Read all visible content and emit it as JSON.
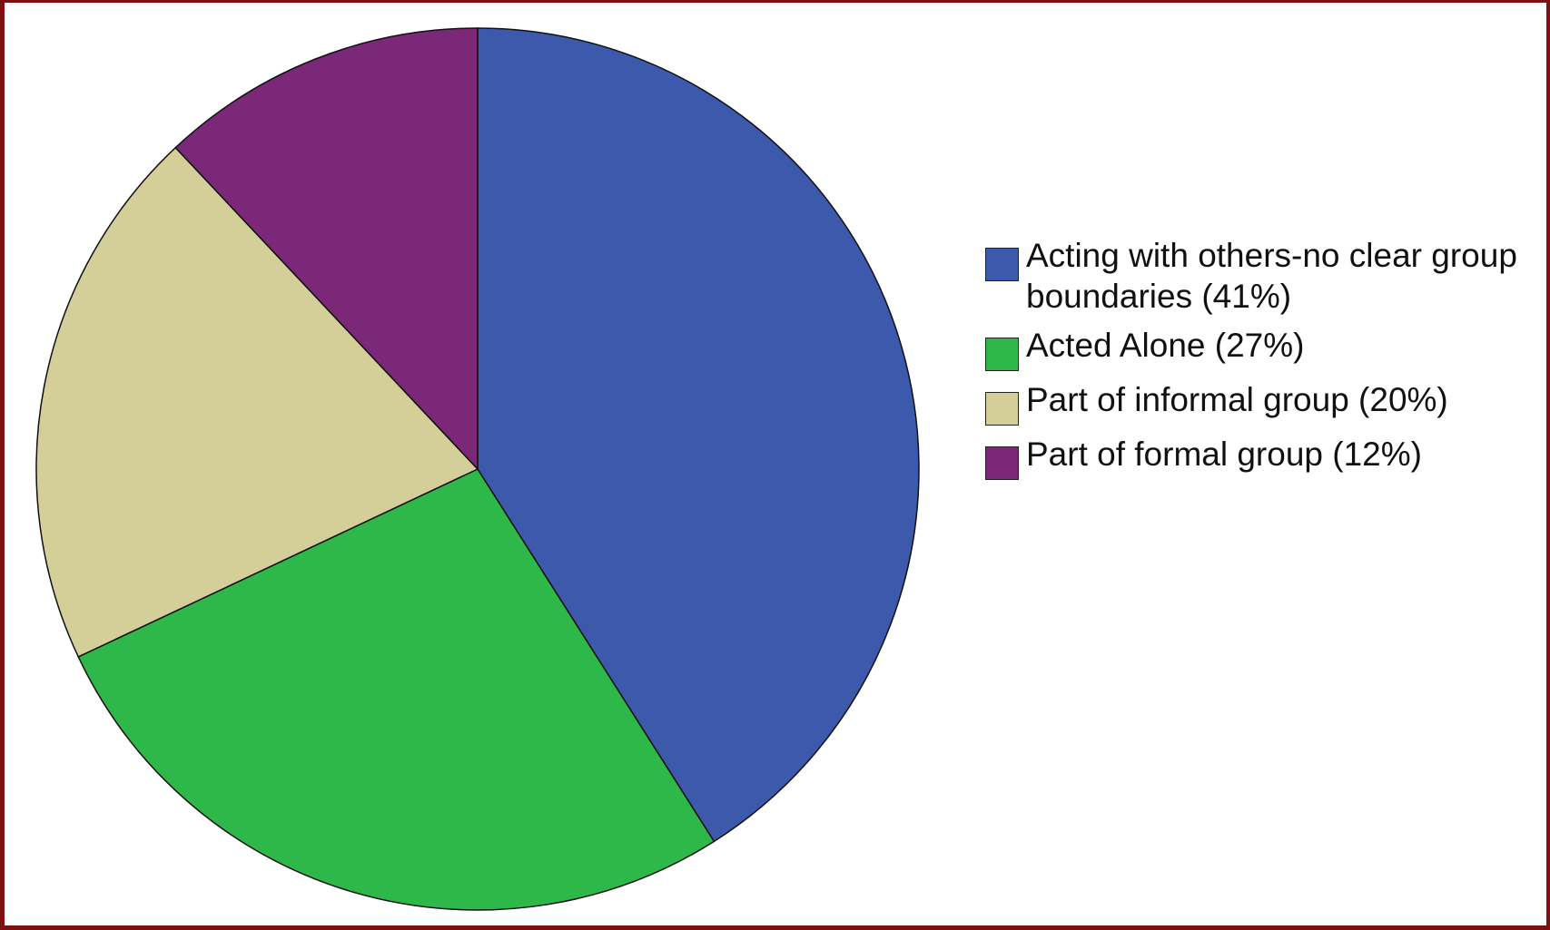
{
  "chart_data": {
    "type": "pie",
    "categories": [
      "Acting with others-no clear group boundaries (41%)",
      "Acted Alone (27%)",
      "Part of informal group (20%)",
      "Part of formal group (12%)"
    ],
    "values": [
      41,
      27,
      20,
      12
    ],
    "colors": [
      "#3d59ab",
      "#2fb84a",
      "#d4cf98",
      "#7b2878"
    ],
    "legend": "right"
  }
}
